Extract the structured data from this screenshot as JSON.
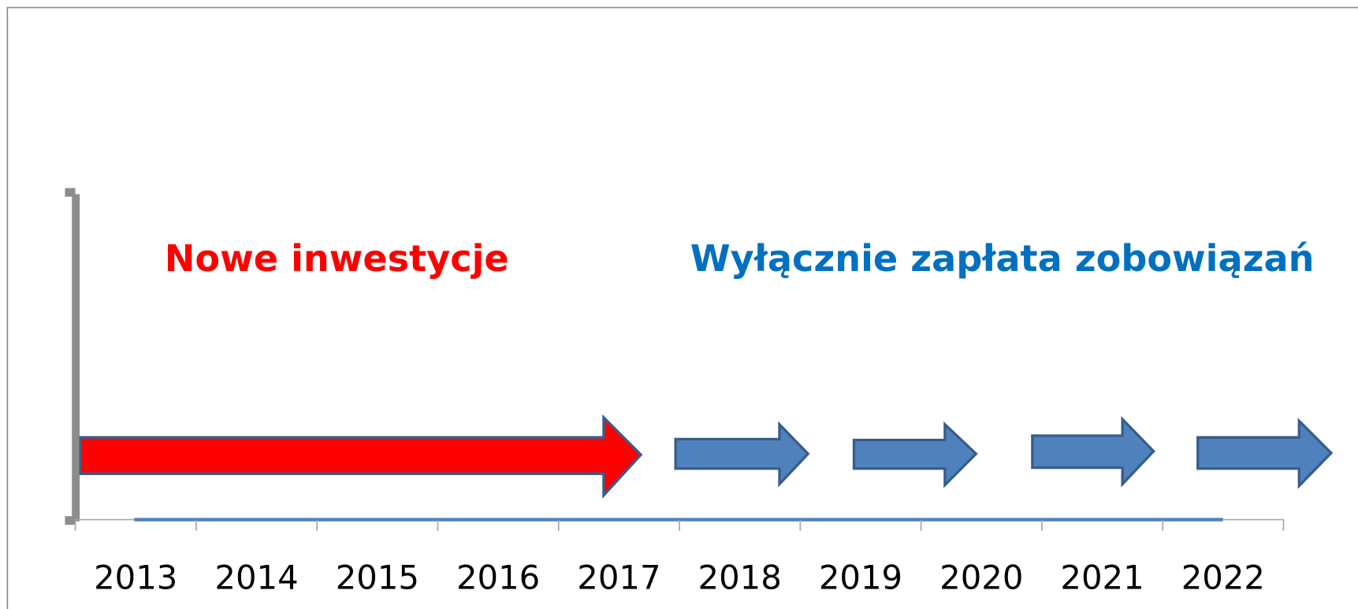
{
  "labels": {
    "left": "Nowe inwestycje",
    "right": "Wyłącznie zapłata zobowiązań"
  },
  "years": [
    "2013",
    "2014",
    "2015",
    "2016",
    "2017",
    "2018",
    "2019",
    "2020",
    "2021",
    "2022"
  ]
}
